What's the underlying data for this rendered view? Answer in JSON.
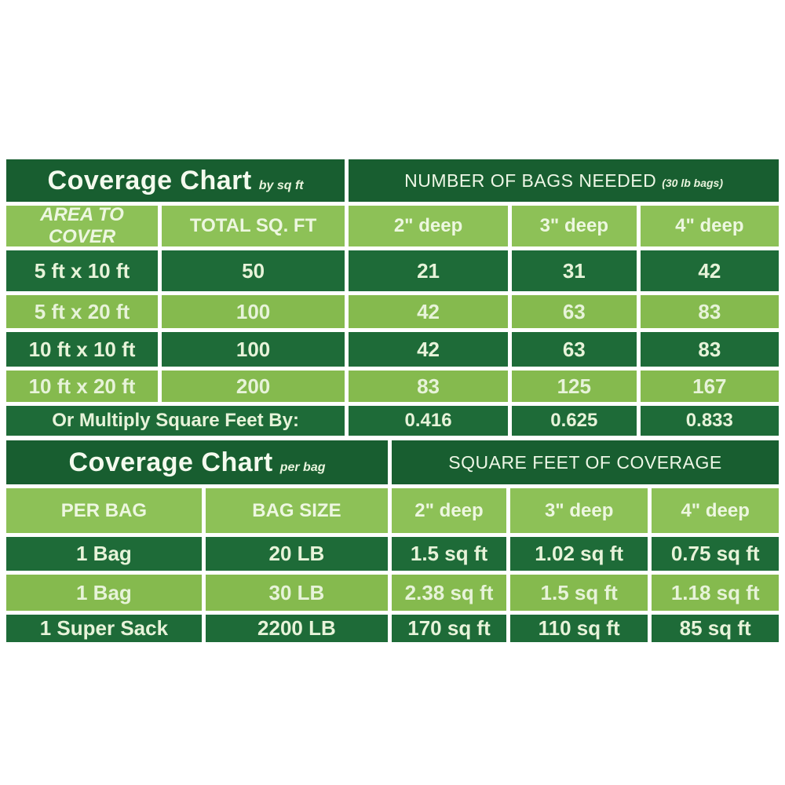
{
  "colors": {
    "background": "#ffffff",
    "dark_title_green": "#185e30",
    "dark_row_green": "#1e6b38",
    "light_header_green": "#8dc157",
    "light_row_green": "#85ba4e",
    "text_pale_green": "#e7f3d9",
    "text_bright": "#f4faee"
  },
  "chart_data": [
    {
      "type": "table",
      "title": "Coverage Chart",
      "title_note": "by sq ft",
      "value_header": "NUMBER OF BAGS NEEDED",
      "value_header_note": "(30 lb bags)",
      "columns": [
        "AREA TO COVER",
        "TOTAL SQ. FT",
        "2\" deep",
        "3\" deep",
        "4\" deep"
      ],
      "rows": [
        [
          "5 ft x 10 ft",
          "50",
          "21",
          "31",
          "42"
        ],
        [
          "5 ft x 20 ft",
          "100",
          "42",
          "63",
          "83"
        ],
        [
          "10 ft x 10 ft",
          "100",
          "42",
          "63",
          "83"
        ],
        [
          "10 ft x 20 ft",
          "200",
          "83",
          "125",
          "167"
        ]
      ],
      "footer_label": "Or Multiply Square Feet By:",
      "footer_values": [
        "0.416",
        "0.625",
        "0.833"
      ]
    },
    {
      "type": "table",
      "title": "Coverage Chart",
      "title_note": "per bag",
      "value_header": "SQUARE FEET OF COVERAGE",
      "columns": [
        "PER BAG",
        "BAG SIZE",
        "2\" deep",
        "3\" deep",
        "4\" deep"
      ],
      "rows": [
        [
          "1 Bag",
          "20 LB",
          "1.5 sq ft",
          "1.02 sq ft",
          "0.75 sq ft"
        ],
        [
          "1 Bag",
          "30 LB",
          "2.38 sq ft",
          "1.5 sq ft",
          "1.18 sq ft"
        ],
        [
          "1 Super Sack",
          "2200 LB",
          "170 sq ft",
          "110 sq ft",
          "85 sq ft"
        ]
      ]
    }
  ]
}
